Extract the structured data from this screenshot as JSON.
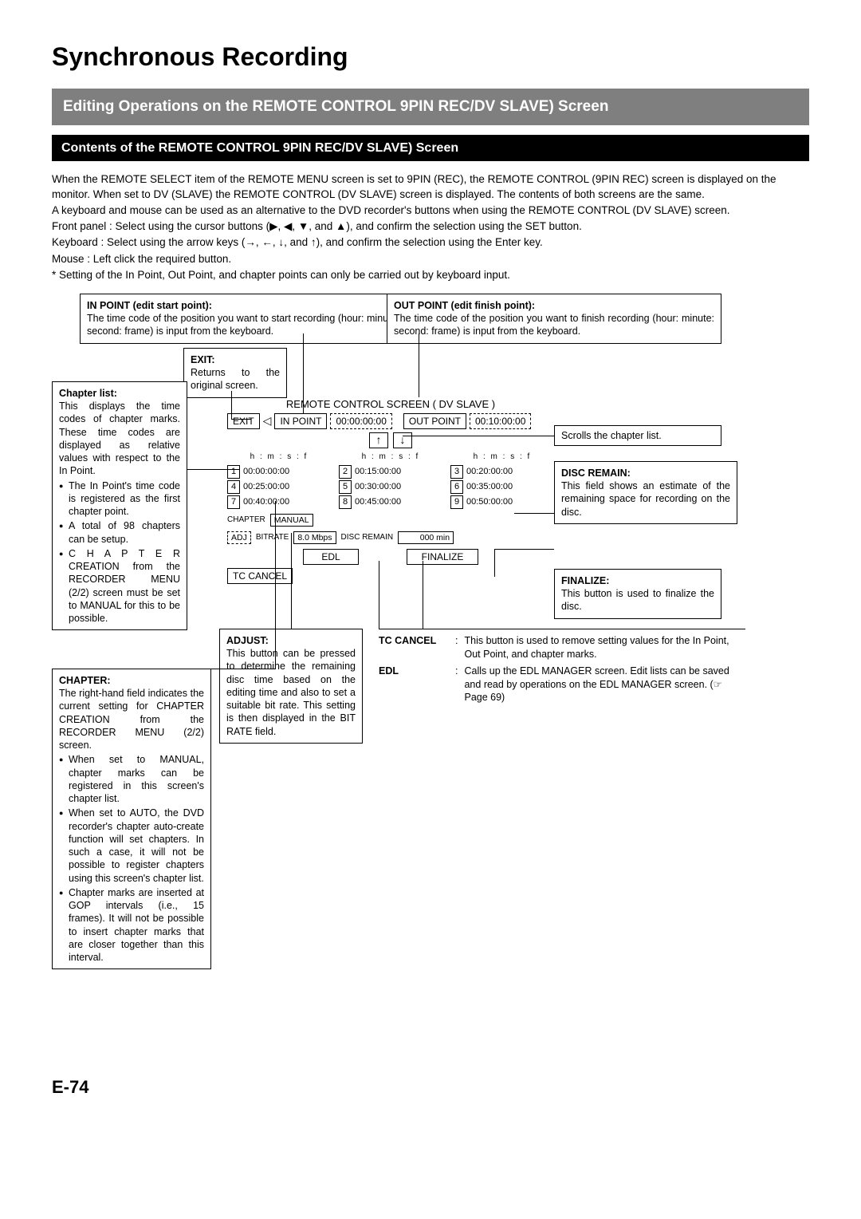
{
  "page": {
    "title": "Synchronous Recording",
    "section": "Editing Operations on the REMOTE CONTROL 9PIN REC/DV SLAVE) Screen",
    "subsection": "Contents of the REMOTE CONTROL 9PIN REC/DV SLAVE) Screen",
    "number": "E-74"
  },
  "intro": {
    "p1": "When the REMOTE SELECT item of the REMOTE MENU screen is set to 9PIN (REC), the REMOTE CONTROL (9PIN REC) screen is displayed on the monitor.  When set to DV (SLAVE) the REMOTE CONTROL (DV SLAVE) screen is displayed. The contents of both screens are the same.",
    "p2": "A keyboard and mouse can be used as an alternative to the DVD recorder's buttons when using the REMOTE CONTROL (DV SLAVE) screen.",
    "front": "Front panel   :  Select using the cursor buttons (▶, ◀, ▼, and ▲), and confirm the selection using the SET button.",
    "keyboard": "Keyboard       :  Select using the arrow keys (→, ←, ↓, and ↑), and confirm the selection using the Enter key.",
    "mouse": "Mouse             :  Left click the required button.",
    "note": "*  Setting of the In Point, Out Point, and chapter points can only be carried out by keyboard input."
  },
  "callouts": {
    "inpoint": {
      "title": "IN POINT (edit start point):",
      "body": "The time code of the position you want to start recording (hour: minute: second: frame) is input from the keyboard."
    },
    "outpoint": {
      "title": "OUT POINT (edit finish point):",
      "body": "The time code of the position you want to finish recording (hour: minute: second: frame) is input from the keyboard."
    },
    "exit": {
      "title": "EXIT:",
      "body": "Returns to the original screen."
    },
    "chapterlist": {
      "title": "Chapter list:",
      "body": "This displays the time codes of chapter marks. These time codes are displayed as relative values with respect to the In Point.",
      "b1": "The In Point's time code is registered as the first chapter point.",
      "b2": "A total of 98 chapters can be setup.",
      "b3": "C H A P T E R CREATION from the RECORDER MENU (2/2) screen must be set to MANUAL for this to be possible."
    },
    "scroll": "Scrolls the chapter list.",
    "discremain": {
      "title": "DISC REMAIN:",
      "body": "This field shows an estimate of the remaining space for recording on the disc."
    },
    "finalize": {
      "title": "FINALIZE:",
      "body": "This button is used to finalize the disc."
    },
    "chapter": {
      "title": "CHAPTER:",
      "body": "The right-hand field indicates the current setting for CHAPTER CREATION from the RECORDER MENU (2/2) screen.",
      "b1": "When set to MANUAL, chapter marks can be registered in this screen's chapter list.",
      "b2": "When set to AUTO, the DVD recorder's chapter auto-create function will set chapters. In such a case, it will not be possible to register chapters using this screen's chapter list.",
      "b3": "Chapter marks are inserted at GOP intervals (i.e., 15 frames). It will not be possible to insert chapter marks that are closer together than this interval."
    },
    "adjust": {
      "title": "ADJUST:",
      "body": "This button can be pressed to determine the remaining disc time based on the editing time and also to set a suitable bit rate. This setting is then displayed in the BIT RATE field."
    }
  },
  "defs": {
    "tccancel": {
      "term": "TC CANCEL",
      "body": "This button is used to remove setting values for the In Point, Out Point, and chapter marks."
    },
    "edl": {
      "term": "EDL",
      "body": "Calls up the EDL MANAGER screen. Edit lists can be saved and read by operations on the EDL MANAGER screen. (☞ Page 69)"
    }
  },
  "screen": {
    "title": "REMOTE CONTROL SCREEN  ( DV SLAVE )",
    "exit": "EXIT",
    "inpoint_label": "IN POINT",
    "inpoint_val": "00:00:00:00",
    "outpoint_label": "OUT POINT",
    "outpoint_val": "00:10:00:00",
    "hmsf": "h : m : s : f",
    "tc": [
      {
        "n": "1",
        "v": "00:00:00:00"
      },
      {
        "n": "2",
        "v": "00:15:00:00"
      },
      {
        "n": "3",
        "v": "00:20:00:00"
      },
      {
        "n": "4",
        "v": "00:25:00:00"
      },
      {
        "n": "5",
        "v": "00:30:00:00"
      },
      {
        "n": "6",
        "v": "00:35:00:00"
      },
      {
        "n": "7",
        "v": "00:40:00:00"
      },
      {
        "n": "8",
        "v": "00:45:00:00"
      },
      {
        "n": "9",
        "v": "00:50:00:00"
      }
    ],
    "chapter_lab": "CHAPTER",
    "chapter_val": "MANUAL",
    "adj": "ADJ",
    "bitrate_lab": "BITRATE",
    "bitrate_val": "8.0 Mbps",
    "discremain_lab": "DISC REMAIN",
    "discremain_val": "000 min",
    "edl": "EDL",
    "finalize": "FINALIZE",
    "tccancel": "TC CANCEL"
  }
}
